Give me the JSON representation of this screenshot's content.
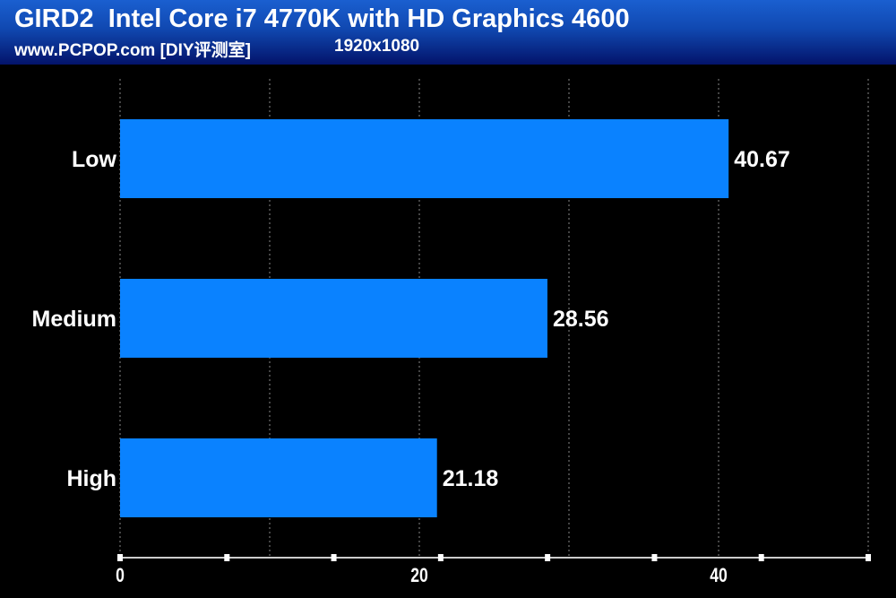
{
  "chart_data": {
    "type": "bar",
    "orientation": "horizontal",
    "title": "GIRD2  Intel Core i7 4770K with HD Graphics 4600",
    "subtitle": "www.PCPOP.com [DIY评测室]",
    "resolution": "1920x1080",
    "categories": [
      "Low",
      "Medium",
      "High"
    ],
    "values": [
      40.67,
      28.56,
      21.18
    ],
    "value_labels": [
      "40.67",
      "28.56",
      "21.18"
    ],
    "xlim": [
      0,
      50
    ],
    "xticks": [
      "0",
      "20",
      "40"
    ],
    "xtick_values": [
      0,
      20,
      40
    ],
    "gridlines": [
      0,
      10,
      20,
      30,
      40,
      50
    ],
    "grid": true,
    "bar_color": "#0a82ff",
    "xlabel": "",
    "ylabel": ""
  }
}
